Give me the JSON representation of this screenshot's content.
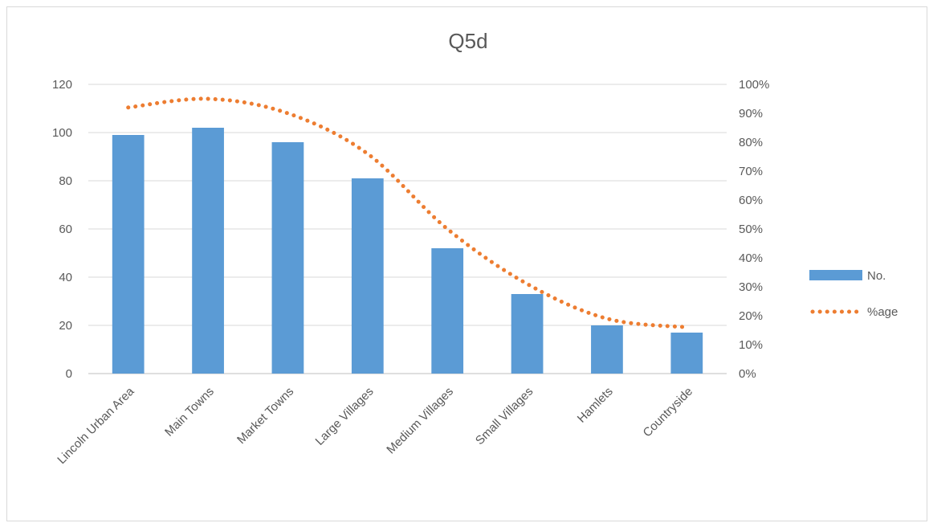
{
  "chart_data": {
    "type": "bar",
    "title": "Q5d",
    "categories": [
      "Lincoln Urban Area",
      "Main Towns",
      "Market Towns",
      "Large Villages",
      "Medium Villages",
      "Small Villages",
      "Hamlets",
      "Countryside"
    ],
    "series": [
      {
        "name": "No.",
        "type": "bar",
        "axis": "left",
        "values": [
          99,
          102,
          96,
          81,
          52,
          33,
          20,
          17
        ],
        "color": "#5b9bd5"
      },
      {
        "name": "%age",
        "type": "line",
        "axis": "right",
        "style": "dotted",
        "values": [
          0.92,
          0.95,
          0.9,
          0.76,
          0.5,
          0.31,
          0.19,
          0.16
        ],
        "color": "#ed7d31"
      }
    ],
    "y_left": {
      "min": 0,
      "max": 120,
      "ticks": [
        "0",
        "20",
        "40",
        "60",
        "80",
        "100",
        "120"
      ]
    },
    "y_right": {
      "min": 0,
      "max": 1,
      "ticks": [
        "0%",
        "10%",
        "20%",
        "30%",
        "40%",
        "50%",
        "60%",
        "70%",
        "80%",
        "90%",
        "100%"
      ]
    },
    "grid": true,
    "legend_position": "right"
  }
}
